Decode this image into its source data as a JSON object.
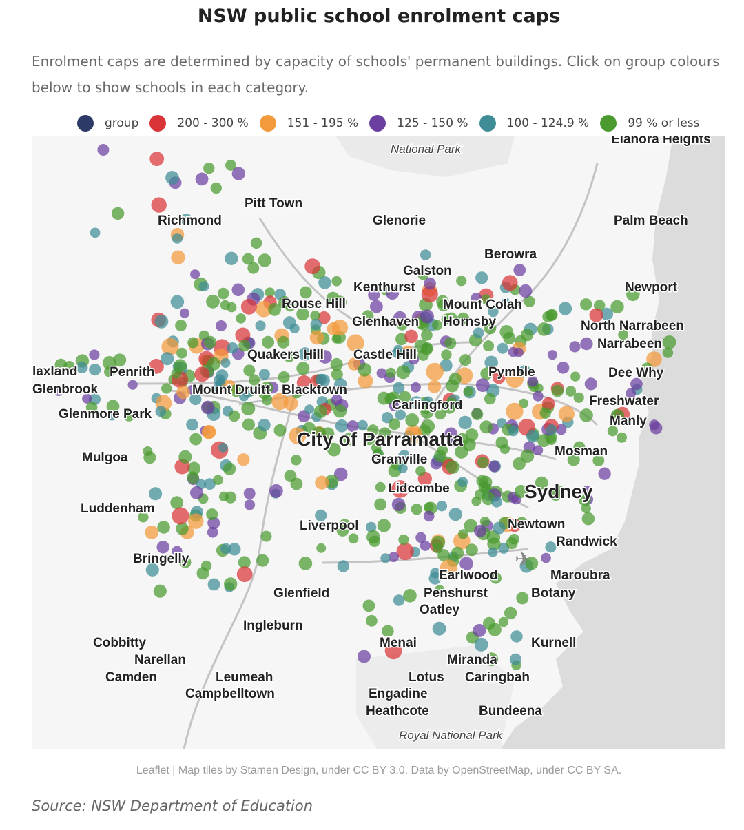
{
  "title": "NSW public school enrolment caps",
  "subtitle": "Enrolment caps are determined by capacity of schools' permanent buildings. Click on group colours below to show schools in each category.",
  "legend": [
    {
      "label": "group",
      "color": "#2b3a67"
    },
    {
      "label": "200 - 300 %",
      "color": "#d93438"
    },
    {
      "label": "151 - 195 %",
      "color": "#f39a3c"
    },
    {
      "label": "125 - 150 %",
      "color": "#6b3fa0"
    },
    {
      "label": "100 - 124.9 %",
      "color": "#3f8c96"
    },
    {
      "label": "99 % or less",
      "color": "#4a9a2f"
    }
  ],
  "map": {
    "places": [
      {
        "name": "Pitt Town",
        "size": "m"
      },
      {
        "name": "Richmond",
        "size": "m"
      },
      {
        "name": "Glenorie",
        "size": "m"
      },
      {
        "name": "Palm Beach",
        "size": "m"
      },
      {
        "name": "Berowra",
        "size": "m"
      },
      {
        "name": "Galston",
        "size": "m"
      },
      {
        "name": "Kenthurst",
        "size": "m"
      },
      {
        "name": "Newport",
        "size": "m"
      },
      {
        "name": "Rouse Hill",
        "size": "m"
      },
      {
        "name": "Mount Colah",
        "size": "m"
      },
      {
        "name": "Glenhaven",
        "size": "m"
      },
      {
        "name": "Hornsby",
        "size": "m"
      },
      {
        "name": "North Narrabeen",
        "size": "m"
      },
      {
        "name": "Narrabeen",
        "size": "m"
      },
      {
        "name": "Quakers Hill",
        "size": "m"
      },
      {
        "name": "Castle Hill",
        "size": "m"
      },
      {
        "name": "laxland",
        "size": "m"
      },
      {
        "name": "Penrith",
        "size": "m"
      },
      {
        "name": "Pymble",
        "size": "m"
      },
      {
        "name": "Dee Why",
        "size": "m"
      },
      {
        "name": "Glenbrook",
        "size": "m"
      },
      {
        "name": "Mount Druitt",
        "size": "m"
      },
      {
        "name": "Blacktown",
        "size": "m"
      },
      {
        "name": "Freshwater",
        "size": "m"
      },
      {
        "name": "Carlingford",
        "size": "m"
      },
      {
        "name": "Glenmore Park",
        "size": "m"
      },
      {
        "name": "Manly",
        "size": "m"
      },
      {
        "name": "City of Parramatta",
        "size": "l"
      },
      {
        "name": "Mosman",
        "size": "m"
      },
      {
        "name": "Mulgoa",
        "size": "m"
      },
      {
        "name": "Granville",
        "size": "m"
      },
      {
        "name": "Lidcombe",
        "size": "m"
      },
      {
        "name": "Sydney",
        "size": "l"
      },
      {
        "name": "Luddenham",
        "size": "m"
      },
      {
        "name": "Liverpool",
        "size": "m"
      },
      {
        "name": "Newtown",
        "size": "m"
      },
      {
        "name": "Randwick",
        "size": "m"
      },
      {
        "name": "Bringelly",
        "size": "m"
      },
      {
        "name": "Earlwood",
        "size": "m"
      },
      {
        "name": "Maroubra",
        "size": "m"
      },
      {
        "name": "Glenfield",
        "size": "m"
      },
      {
        "name": "Penshurst",
        "size": "m"
      },
      {
        "name": "Botany",
        "size": "m"
      },
      {
        "name": "Oatley",
        "size": "m"
      },
      {
        "name": "Ingleburn",
        "size": "m"
      },
      {
        "name": "Cobbitty",
        "size": "m"
      },
      {
        "name": "Menai",
        "size": "m"
      },
      {
        "name": "Kurnell",
        "size": "m"
      },
      {
        "name": "Narellan",
        "size": "m"
      },
      {
        "name": "Miranda",
        "size": "m"
      },
      {
        "name": "Camden",
        "size": "m"
      },
      {
        "name": "Leumeah",
        "size": "m"
      },
      {
        "name": "Lotus",
        "size": "m"
      },
      {
        "name": "Caringbah",
        "size": "m"
      },
      {
        "name": "Campbelltown",
        "size": "m"
      },
      {
        "name": "Engadine",
        "size": "m"
      },
      {
        "name": "Heathcote",
        "size": "m"
      },
      {
        "name": "Bundeena",
        "size": "m"
      },
      {
        "name": "Elanora Heights",
        "size": "m"
      }
    ],
    "parks": [
      "National Park",
      "Royal National Park"
    ]
  },
  "attribution": "Leaflet | Map tiles by Stamen Design, under CC BY 3.0. Data by OpenStreetMap, under CC BY SA.",
  "source": "Source: NSW Department of Education"
}
